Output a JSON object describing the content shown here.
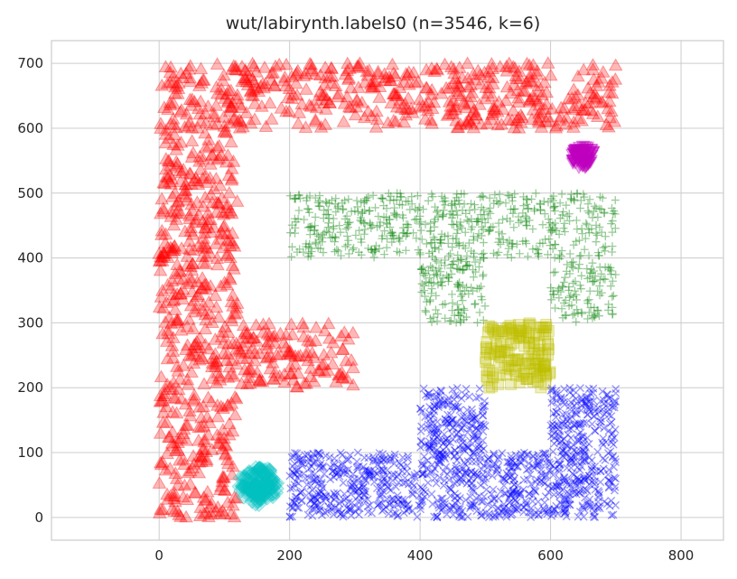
{
  "chart_data": {
    "type": "scatter",
    "title": "wut/labirynth.labels0 (n=3546, k=6)",
    "xlabel": "",
    "ylabel": "",
    "xlim": [
      -165,
      865
    ],
    "ylim": [
      -35,
      735
    ],
    "xticks": [
      0,
      200,
      400,
      600,
      800
    ],
    "yticks": [
      0,
      100,
      200,
      300,
      400,
      500,
      600,
      700
    ],
    "xtick_labels": [
      "0",
      "200",
      "400",
      "600",
      "800"
    ],
    "ytick_labels": [
      "0",
      "100",
      "200",
      "300",
      "400",
      "500",
      "600",
      "700"
    ],
    "grid": true,
    "legend": "none",
    "series": [
      {
        "label": 0,
        "color": "#ff0000",
        "marker": "triangle-up",
        "count": 1150,
        "regions": [
          {
            "x": [
              0,
              120
            ],
            "y": [
              0,
              700
            ]
          },
          {
            "x": [
              120,
              700
            ],
            "y": [
              600,
              700
            ]
          },
          {
            "x": [
              120,
              300
            ],
            "y": [
              200,
              300
            ]
          }
        ]
      },
      {
        "label": 1,
        "color": "#008000",
        "marker": "plus",
        "count": 800,
        "regions": [
          {
            "x": [
              200,
              700
            ],
            "y": [
              400,
              500
            ]
          },
          {
            "x": [
              400,
              500
            ],
            "y": [
              300,
              400
            ]
          },
          {
            "x": [
              600,
              700
            ],
            "y": [
              300,
              400
            ]
          }
        ]
      },
      {
        "label": 2,
        "color": "#0000ff",
        "marker": "x",
        "count": 1250,
        "regions": [
          {
            "x": [
              200,
              700
            ],
            "y": [
              0,
              100
            ]
          },
          {
            "x": [
              400,
              500
            ],
            "y": [
              100,
              200
            ]
          },
          {
            "x": [
              600,
              700
            ],
            "y": [
              100,
              200
            ]
          }
        ]
      },
      {
        "label": 3,
        "color": "#00bfbf",
        "marker": "diamond",
        "count": 120,
        "circle": {
          "cx": 152,
          "cy": 50,
          "r": 30
        }
      },
      {
        "label": 4,
        "color": "#bfbf00",
        "marker": "square",
        "count": 140,
        "regions": [
          {
            "x": [
              500,
              600
            ],
            "y": [
              200,
              300
            ]
          }
        ]
      },
      {
        "label": 5,
        "color": "#bf00bf",
        "marker": "triangle-down",
        "count": 86,
        "circle": {
          "cx": 650,
          "cy": 555,
          "r": 18
        }
      }
    ]
  }
}
